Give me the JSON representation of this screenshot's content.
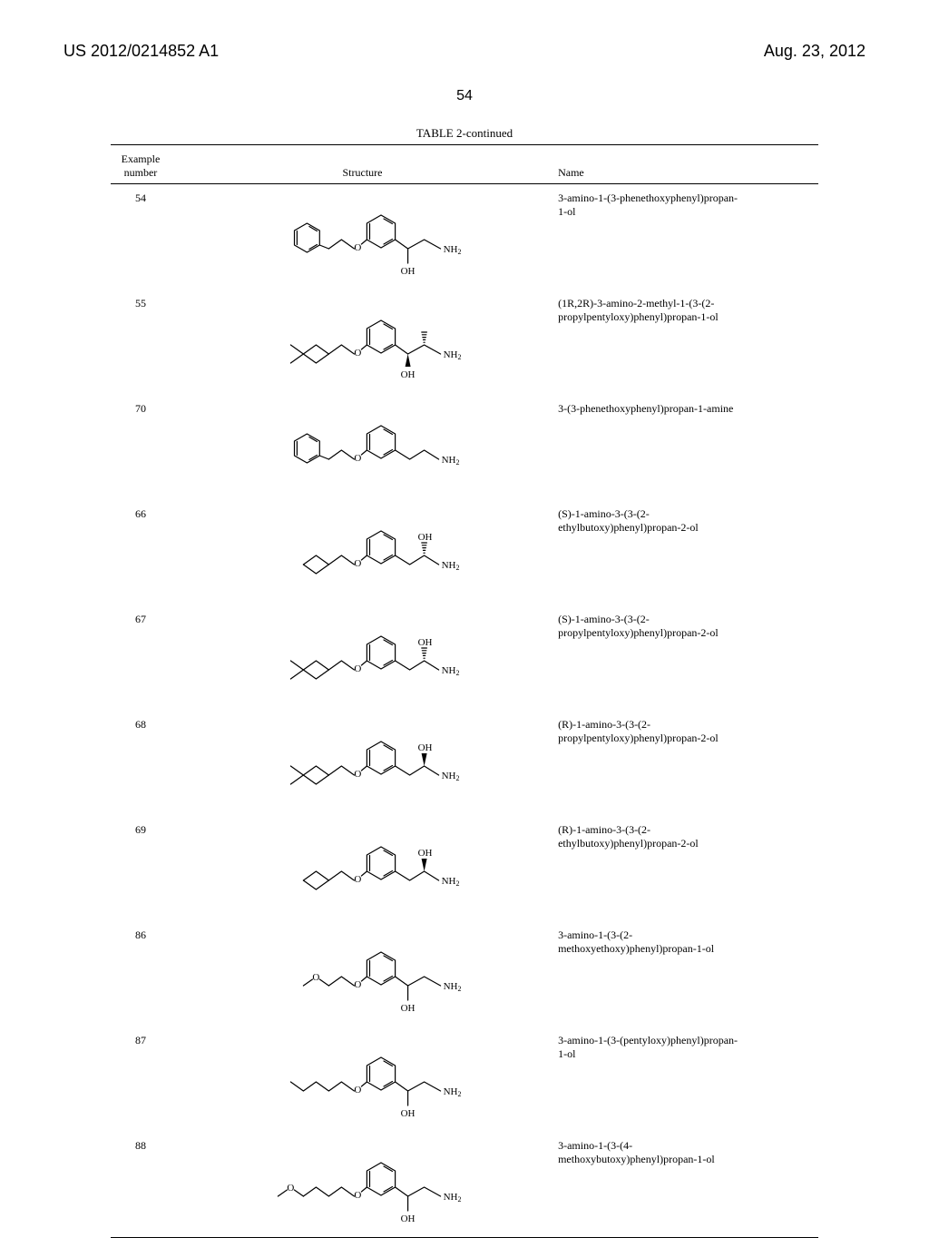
{
  "header": {
    "left": "US 2012/0214852 A1",
    "right": "Aug. 23, 2012"
  },
  "page_number": "54",
  "table": {
    "caption": "TABLE 2-continued",
    "columns": {
      "example": "Example\nnumber",
      "structure": "Structure",
      "name": "Name"
    },
    "rows": [
      {
        "num": "54",
        "name": "3-amino-1-(3-phenethoxyphenyl)propan-\n1-ol",
        "svg_key": "s54"
      },
      {
        "num": "55",
        "name": "(1R,2R)-3-amino-2-methyl-1-(3-(2-\npropylpentyloxy)phenyl)propan-1-ol",
        "svg_key": "s55"
      },
      {
        "num": "70",
        "name": "3-(3-phenethoxyphenyl)propan-1-amine",
        "svg_key": "s70"
      },
      {
        "num": "66",
        "name": "(S)-1-amino-3-(3-(2-\nethylbutoxy)phenyl)propan-2-ol",
        "svg_key": "s66"
      },
      {
        "num": "67",
        "name": "(S)-1-amino-3-(3-(2-\npropylpentyloxy)phenyl)propan-2-ol",
        "svg_key": "s67"
      },
      {
        "num": "68",
        "name": "(R)-1-amino-3-(3-(2-\npropylpentyloxy)phenyl)propan-2-ol",
        "svg_key": "s68"
      },
      {
        "num": "69",
        "name": "(R)-1-amino-3-(3-(2-\nethylbutoxy)phenyl)propan-2-ol",
        "svg_key": "s69"
      },
      {
        "num": "86",
        "name": "3-amino-1-(3-(2-\nmethoxyethoxy)phenyl)propan-1-ol",
        "svg_key": "s86"
      },
      {
        "num": "87",
        "name": "3-amino-1-(3-(pentyloxy)phenyl)propan-\n1-ol",
        "svg_key": "s87"
      },
      {
        "num": "88",
        "name": "3-amino-1-(3-(4-\nmethoxybutoxy)phenyl)propan-1-ol",
        "svg_key": "s88"
      }
    ]
  },
  "style": {
    "page_bg": "#ffffff",
    "text_color": "#000000",
    "rule_color": "#000000",
    "font_body": "Times New Roman",
    "font_header": "Arial",
    "font_size_header": 18,
    "font_size_pagenum": 16,
    "font_size_caption": 13,
    "font_size_table": 12,
    "structure_stroke": "#000000",
    "structure_stroke_width": 1.2,
    "label_font_size": 11
  }
}
